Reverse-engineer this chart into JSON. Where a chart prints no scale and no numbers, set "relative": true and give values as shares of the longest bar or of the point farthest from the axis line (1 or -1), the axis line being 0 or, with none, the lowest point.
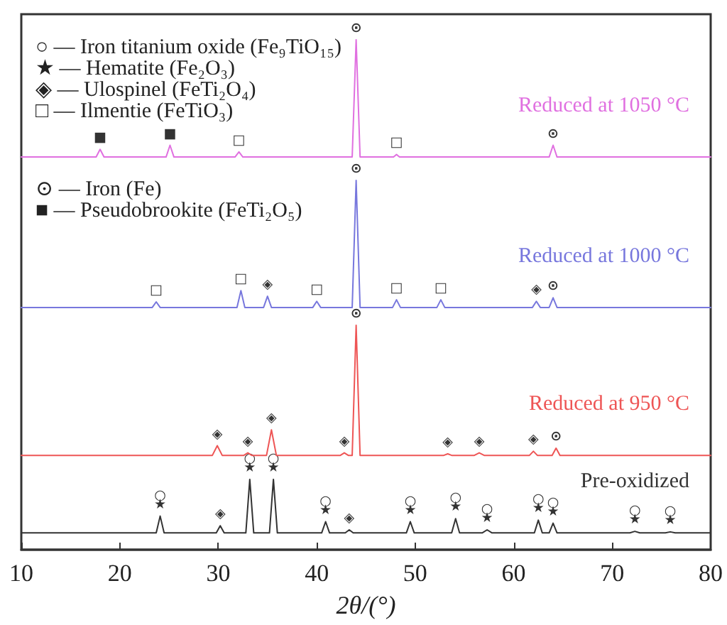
{
  "chart_data": {
    "type": "line",
    "relative": true,
    "xlabel": "2θ/(°)",
    "xlim": [
      10,
      80
    ],
    "xticks": [
      10,
      20,
      30,
      40,
      50,
      60,
      70,
      80
    ],
    "grid": false,
    "legend": false,
    "marker": "none",
    "series": [
      {
        "name": "Reduced at 1050 °C",
        "color": "#e070e0",
        "x": [
          10,
          17.6,
          18.0,
          18.4,
          24.7,
          25.1,
          25.5,
          31.7,
          32.1,
          32.5,
          43.6,
          44.0,
          44.4,
          47.8,
          48.1,
          48.4,
          63.6,
          64.0,
          64.4,
          80
        ],
        "values": [
          0.77,
          0.77,
          0.785,
          0.77,
          0.77,
          0.793,
          0.77,
          0.77,
          0.78,
          0.77,
          0.77,
          1,
          0.77,
          0.77,
          0.775,
          0.77,
          0.77,
          0.793,
          0.77,
          0.77
        ]
      },
      {
        "name": "Reduced at 1000 °C",
        "color": "#7777dd",
        "x": [
          10,
          23.3,
          23.7,
          24.1,
          31.9,
          32.3,
          32.7,
          34.6,
          35.0,
          35.4,
          39.6,
          40.0,
          40.4,
          43.6,
          44.0,
          44.4,
          47.7,
          48.1,
          48.5,
          52.2,
          52.6,
          53.0,
          61.9,
          62.3,
          62.7,
          63.6,
          64.0,
          64.4,
          80
        ],
        "values": [
          0.475,
          0.475,
          0.486,
          0.475,
          0.475,
          0.508,
          0.475,
          0.475,
          0.497,
          0.475,
          0.475,
          0.487,
          0.475,
          0.475,
          0.724,
          0.475,
          0.475,
          0.49,
          0.475,
          0.475,
          0.49,
          0.475,
          0.475,
          0.487,
          0.475,
          0.475,
          0.494,
          0.475,
          0.475
        ]
      },
      {
        "name": "Reduced at 950 °C",
        "color": "#ee5555",
        "x": [
          10,
          29.4,
          29.9,
          30.4,
          32.6,
          33.0,
          33.4,
          34.9,
          35.4,
          35.9,
          42.4,
          42.8,
          43.2,
          43.6,
          44.0,
          44.4,
          52.9,
          53.3,
          53.7,
          56.0,
          56.5,
          57.0,
          61.6,
          62.0,
          62.4,
          63.9,
          64.3,
          64.7,
          80
        ],
        "values": [
          0.185,
          0.185,
          0.204,
          0.185,
          0.185,
          0.19,
          0.185,
          0.185,
          0.235,
          0.185,
          0.185,
          0.19,
          0.185,
          0.185,
          0.44,
          0.185,
          0.185,
          0.188,
          0.185,
          0.185,
          0.19,
          0.185,
          0.185,
          0.193,
          0.185,
          0.185,
          0.199,
          0.185,
          0.185
        ]
      },
      {
        "name": "Pre-oxidized",
        "color": "#333333",
        "x": [
          10,
          23.7,
          24.1,
          24.5,
          29.8,
          30.2,
          30.6,
          32.8,
          33.2,
          33.6,
          35.2,
          35.6,
          36.0,
          40.5,
          40.9,
          41.3,
          42.9,
          43.3,
          43.7,
          49.1,
          49.5,
          49.9,
          53.7,
          54.1,
          54.5,
          56.8,
          57.3,
          57.8,
          62.1,
          62.5,
          62.9,
          63.6,
          64.0,
          64.4,
          71.8,
          72.3,
          72.8,
          75.4,
          75.9,
          76.4,
          80
        ],
        "values": [
          0.033,
          0.033,
          0.066,
          0.033,
          0.033,
          0.047,
          0.033,
          0.033,
          0.138,
          0.033,
          0.033,
          0.138,
          0.033,
          0.033,
          0.055,
          0.033,
          0.033,
          0.039,
          0.033,
          0.033,
          0.055,
          0.033,
          0.033,
          0.061,
          0.033,
          0.033,
          0.039,
          0.033,
          0.033,
          0.058,
          0.033,
          0.033,
          0.052,
          0.033,
          0.033,
          0.036,
          0.033,
          0.033,
          0.035,
          0.033,
          0.033
        ]
      }
    ],
    "annotations": [
      "○ — Iron titanium oxide (Fe₉TiO₁₅)",
      "★ — Hematite (Fe₂O₃)",
      "◈ — Ulospinel (FeTi₂O₄)",
      "□ — Ilmentie (FeTiO₃)",
      "⊙ — Iron (Fe)",
      "■ — Pseudobrookite (FeTi₂O₅)",
      {
        "text": "■",
        "x": 18.0,
        "y": 0.785
      },
      {
        "text": "■",
        "x": 25.1,
        "y": 0.793
      },
      {
        "text": "□",
        "x": 32.1,
        "y": 0.78
      },
      {
        "text": "⊙",
        "x": 44.0,
        "y": 1
      },
      {
        "text": "□",
        "x": 48.1,
        "y": 0.775
      },
      {
        "text": "⊙",
        "x": 64.0,
        "y": 0.793
      },
      {
        "text": "□",
        "x": 23.7,
        "y": 0.486
      },
      {
        "text": "□",
        "x": 32.3,
        "y": 0.508
      },
      {
        "text": "◈",
        "x": 35.0,
        "y": 0.497
      },
      {
        "text": "□",
        "x": 40.0,
        "y": 0.487
      },
      {
        "text": "⊙",
        "x": 44.0,
        "y": 0.724
      },
      {
        "text": "□",
        "x": 48.1,
        "y": 0.49
      },
      {
        "text": "□",
        "x": 52.6,
        "y": 0.49
      },
      {
        "text": "◈",
        "x": 62.3,
        "y": 0.487
      },
      {
        "text": "⊙",
        "x": 64.0,
        "y": 0.494
      },
      {
        "text": "◈",
        "x": 29.9,
        "y": 0.204
      },
      {
        "text": "◈",
        "x": 33.0,
        "y": 0.19
      },
      {
        "text": "◈",
        "x": 35.4,
        "y": 0.235
      },
      {
        "text": "◈",
        "x": 42.8,
        "y": 0.19
      },
      {
        "text": "⊙",
        "x": 44.0,
        "y": 0.44
      },
      {
        "text": "◈",
        "x": 53.3,
        "y": 0.188
      },
      {
        "text": "◈",
        "x": 56.5,
        "y": 0.19
      },
      {
        "text": "◈",
        "x": 62.0,
        "y": 0.193
      },
      {
        "text": "⊙",
        "x": 64.3,
        "y": 0.199
      },
      {
        "text": "★",
        "x": 24.1,
        "y": 0.066
      },
      {
        "text": "○",
        "x": 24.1,
        "y": 0.066
      },
      {
        "text": "◈",
        "x": 30.2,
        "y": 0.047
      },
      {
        "text": "★",
        "x": 33.2,
        "y": 0.138
      },
      {
        "text": "○",
        "x": 33.2,
        "y": 0.138
      },
      {
        "text": "★",
        "x": 35.6,
        "y": 0.138
      },
      {
        "text": "○",
        "x": 35.6,
        "y": 0.138
      },
      {
        "text": "★",
        "x": 40.9,
        "y": 0.055
      },
      {
        "text": "○",
        "x": 40.9,
        "y": 0.055
      },
      {
        "text": "◈",
        "x": 43.3,
        "y": 0.039
      },
      {
        "text": "★",
        "x": 49.5,
        "y": 0.055
      },
      {
        "text": "○",
        "x": 49.5,
        "y": 0.055
      },
      {
        "text": "★",
        "x": 54.1,
        "y": 0.061
      },
      {
        "text": "○",
        "x": 54.1,
        "y": 0.061
      },
      {
        "text": "★",
        "x": 57.3,
        "y": 0.039
      },
      {
        "text": "○",
        "x": 57.3,
        "y": 0.039
      },
      {
        "text": "★",
        "x": 62.5,
        "y": 0.058
      },
      {
        "text": "○",
        "x": 62.5,
        "y": 0.058
      },
      {
        "text": "★",
        "x": 64.0,
        "y": 0.052
      },
      {
        "text": "○",
        "x": 64.0,
        "y": 0.052
      },
      {
        "text": "★",
        "x": 72.3,
        "y": 0.036
      },
      {
        "text": "○",
        "x": 72.3,
        "y": 0.036
      },
      {
        "text": "★",
        "x": 75.9,
        "y": 0.035
      },
      {
        "text": "○",
        "x": 75.9,
        "y": 0.035
      }
    ]
  }
}
